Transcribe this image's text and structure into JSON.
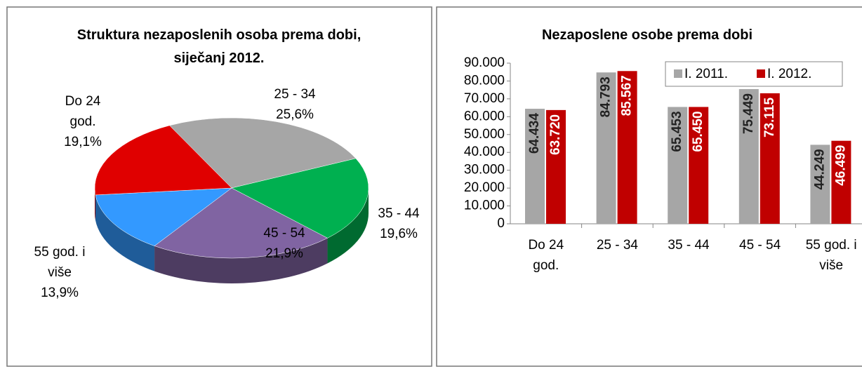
{
  "chart_data": [
    {
      "type": "pie",
      "title": "Struktura nezaposlenih osoba prema dobi, siječanj 2012.",
      "categories": [
        "25 - 34",
        "35 - 44",
        "45 - 54",
        "55 god. i više",
        "Do 24 god."
      ],
      "values": [
        25.6,
        19.6,
        21.9,
        13.9,
        19.1
      ],
      "value_labels": [
        "25,6%",
        "19,6%",
        "21,9%",
        "13,9%",
        "19,1%"
      ],
      "colors": [
        "#a6a6a6",
        "#00b050",
        "#8064a2",
        "#3399ff",
        "#e00000"
      ]
    },
    {
      "type": "bar",
      "title": "Nezaposlene osobe prema dobi",
      "categories": [
        "Do 24 god.",
        "25 - 34",
        "35 - 44",
        "45 - 54",
        "55 god. i više"
      ],
      "series": [
        {
          "name": "I. 2011.",
          "color": "#a6a6a6",
          "values": [
            64434,
            84793,
            65453,
            75449,
            44249
          ],
          "value_labels": [
            "64.434",
            "84.793",
            "65.453",
            "75.449",
            "44.249"
          ]
        },
        {
          "name": "I. 2012.",
          "color": "#c00000",
          "values": [
            63720,
            85567,
            65450,
            73115,
            46499
          ],
          "value_labels": [
            "63.720",
            "85.567",
            "65.450",
            "73.115",
            "46.499"
          ]
        }
      ],
      "ylim": [
        0,
        90000
      ],
      "yticks": [
        0,
        {
          "value": 10000,
          "label": "10.000"
        },
        {
          "value": 20000,
          "label": "20.000"
        },
        {
          "value": 30000,
          "label": "30.000"
        },
        {
          "value": 40000,
          "label": "40.000"
        },
        {
          "value": 50000,
          "label": "50.000"
        },
        {
          "value": 60000,
          "label": "60.000"
        },
        {
          "value": 70000,
          "label": "70.000"
        },
        {
          "value": 80000,
          "label": "80.000"
        },
        {
          "value": 90000,
          "label": "90.000"
        }
      ],
      "grid": false,
      "legend": "top-right"
    }
  ]
}
